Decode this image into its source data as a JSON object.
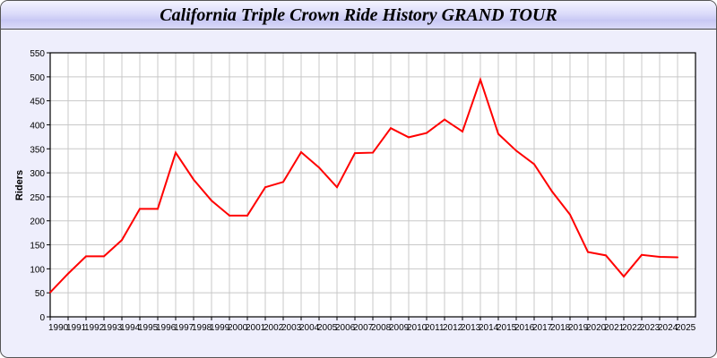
{
  "chart_data": {
    "type": "line",
    "title": "California Triple Crown Ride History GRAND TOUR",
    "xlabel": "",
    "ylabel": "Riders",
    "ylim": [
      0,
      550
    ],
    "yticks": [
      0,
      50,
      100,
      150,
      200,
      250,
      300,
      350,
      400,
      450,
      500,
      550
    ],
    "grid": true,
    "x": [
      1990,
      1991,
      1992,
      1993,
      1994,
      1995,
      1996,
      1997,
      1998,
      1999,
      2000,
      2001,
      2002,
      2003,
      2004,
      2005,
      2006,
      2007,
      2008,
      2009,
      2010,
      2011,
      2012,
      2013,
      2014,
      2015,
      2016,
      2017,
      2018,
      2019,
      2020,
      2021,
      2022,
      2023,
      2024,
      2025
    ],
    "series": [
      {
        "values": [
          51,
          90,
          126,
          126,
          160,
          225,
          225,
          342,
          286,
          242,
          211,
          211,
          270,
          281,
          343,
          311,
          270,
          341,
          342,
          393,
          374,
          383,
          411,
          386,
          494,
          381,
          346,
          318,
          261,
          213,
          135,
          128,
          84,
          129,
          125,
          124
        ],
        "color": "#ff0000"
      }
    ]
  }
}
